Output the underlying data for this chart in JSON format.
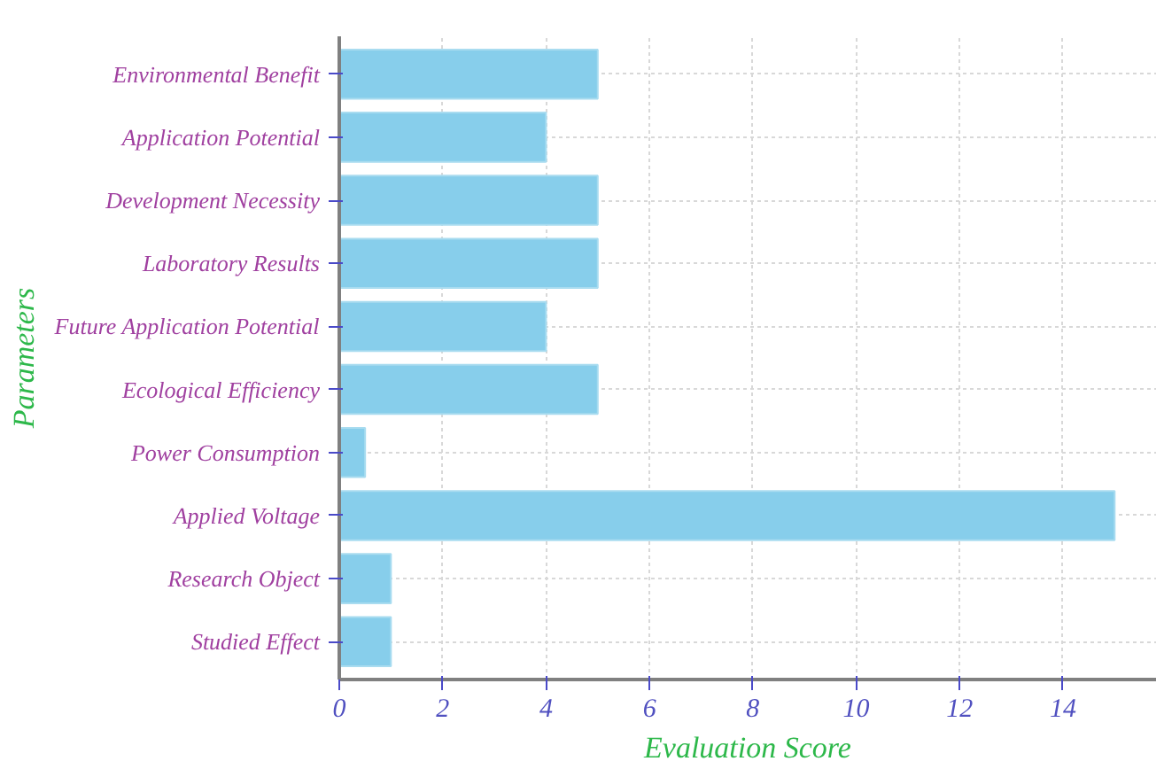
{
  "chart_data": {
    "type": "bar",
    "orientation": "horizontal",
    "xlabel": "Evaluation Score",
    "ylabel": "Parameters",
    "categories": [
      "Environmental Benefit",
      "Application Potential",
      "Development Necessity",
      "Laboratory Results",
      "Future Application Potential",
      "Ecological Efficiency",
      "Power Consumption",
      "Applied Voltage",
      "Research Object",
      "Studied Effect"
    ],
    "values": [
      5,
      4,
      5,
      5,
      4,
      5,
      0.5,
      15,
      1,
      1
    ],
    "color": "#87ceeb",
    "xlim": [
      0,
      15.8
    ],
    "xticks": [
      0,
      2,
      4,
      6,
      8,
      10,
      12,
      14
    ],
    "grid": true
  }
}
